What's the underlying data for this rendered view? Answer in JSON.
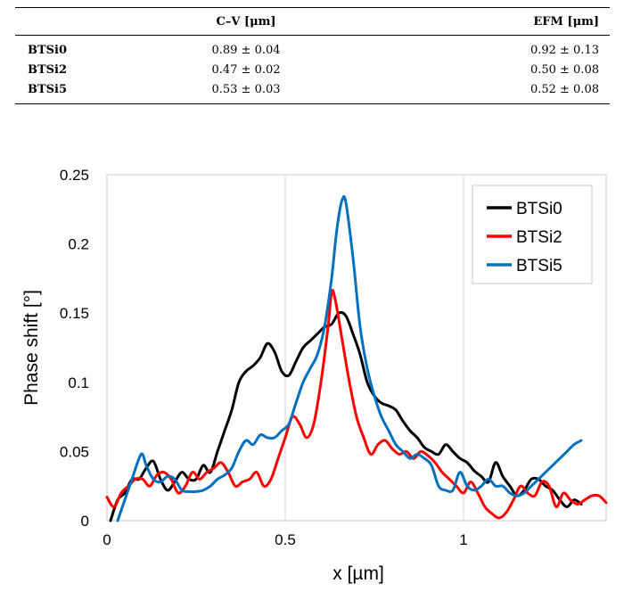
{
  "table": {
    "headers": [
      "",
      "C–V [μm]",
      "EFM [μm]"
    ],
    "rows": [
      [
        "BTSi0",
        "0.89 ± 0.04",
        "0.92 ± 0.13"
      ],
      [
        "BTSi2",
        "0.47 ± 0.02",
        "0.50 ± 0.08"
      ],
      [
        "BTSi5",
        "0.53 ± 0.03",
        "0.52 ± 0.08"
      ]
    ]
  },
  "chart_data": {
    "type": "line",
    "title": "",
    "xlabel": "x [µm]",
    "ylabel": "Phase shift [°]",
    "xlim": [
      0,
      1.4
    ],
    "ylim": [
      0,
      0.25
    ],
    "xticks": [
      0,
      0.5,
      1
    ],
    "xtick_labels": [
      "0",
      "0.5",
      "1"
    ],
    "yticks": [
      0,
      0.05,
      0.1,
      0.15,
      0.2,
      0.25
    ],
    "ytick_labels": [
      "0",
      "0.05",
      "0.1",
      "0.15",
      "0.2",
      "0.25"
    ],
    "grid": "vertical",
    "legend_position": "top-right",
    "series": [
      {
        "name": "BTSi0",
        "color": "#000000",
        "x": [
          0.01,
          0.03,
          0.05,
          0.07,
          0.09,
          0.11,
          0.13,
          0.15,
          0.17,
          0.19,
          0.21,
          0.23,
          0.25,
          0.27,
          0.29,
          0.31,
          0.33,
          0.35,
          0.37,
          0.39,
          0.41,
          0.43,
          0.45,
          0.47,
          0.49,
          0.51,
          0.53,
          0.55,
          0.57,
          0.59,
          0.61,
          0.63,
          0.65,
          0.67,
          0.69,
          0.71,
          0.73,
          0.75,
          0.77,
          0.79,
          0.81,
          0.83,
          0.85,
          0.87,
          0.89,
          0.91,
          0.93,
          0.95,
          0.97,
          0.99,
          1.01,
          1.03,
          1.05,
          1.07,
          1.09,
          1.11,
          1.13,
          1.15,
          1.17,
          1.19,
          1.21,
          1.23,
          1.25,
          1.27,
          1.29,
          1.31,
          1.33
        ],
        "y": [
          0.0,
          0.015,
          0.02,
          0.03,
          0.03,
          0.038,
          0.043,
          0.03,
          0.022,
          0.028,
          0.035,
          0.03,
          0.03,
          0.04,
          0.035,
          0.05,
          0.065,
          0.08,
          0.1,
          0.108,
          0.112,
          0.118,
          0.128,
          0.122,
          0.108,
          0.105,
          0.115,
          0.125,
          0.13,
          0.135,
          0.14,
          0.142,
          0.15,
          0.148,
          0.135,
          0.12,
          0.1,
          0.09,
          0.085,
          0.083,
          0.08,
          0.072,
          0.065,
          0.06,
          0.053,
          0.05,
          0.048,
          0.055,
          0.05,
          0.045,
          0.042,
          0.036,
          0.032,
          0.028,
          0.042,
          0.032,
          0.025,
          0.018,
          0.022,
          0.03,
          0.03,
          0.025,
          0.022,
          0.015,
          0.01,
          0.015,
          0.012
        ]
      },
      {
        "name": "BTSi2",
        "color": "#ff0000",
        "x": [
          0.0,
          0.02,
          0.04,
          0.06,
          0.08,
          0.1,
          0.12,
          0.14,
          0.16,
          0.18,
          0.2,
          0.22,
          0.24,
          0.26,
          0.28,
          0.3,
          0.32,
          0.34,
          0.36,
          0.38,
          0.4,
          0.42,
          0.44,
          0.46,
          0.48,
          0.5,
          0.52,
          0.54,
          0.56,
          0.58,
          0.6,
          0.62,
          0.63,
          0.64,
          0.66,
          0.68,
          0.7,
          0.72,
          0.74,
          0.76,
          0.78,
          0.8,
          0.82,
          0.84,
          0.86,
          0.88,
          0.9,
          0.92,
          0.94,
          0.96,
          0.98,
          1.0,
          1.02,
          1.04,
          1.06,
          1.08,
          1.1,
          1.12,
          1.14,
          1.16,
          1.18,
          1.2,
          1.22,
          1.24,
          1.26,
          1.28,
          1.3,
          1.32,
          1.34,
          1.36,
          1.38,
          1.4
        ],
        "y": [
          0.017,
          0.01,
          0.02,
          0.025,
          0.03,
          0.03,
          0.025,
          0.033,
          0.035,
          0.03,
          0.02,
          0.025,
          0.035,
          0.03,
          0.035,
          0.038,
          0.042,
          0.035,
          0.025,
          0.028,
          0.03,
          0.035,
          0.025,
          0.03,
          0.045,
          0.06,
          0.075,
          0.07,
          0.06,
          0.07,
          0.1,
          0.14,
          0.165,
          0.16,
          0.13,
          0.1,
          0.075,
          0.06,
          0.048,
          0.055,
          0.058,
          0.052,
          0.048,
          0.05,
          0.045,
          0.05,
          0.047,
          0.042,
          0.035,
          0.03,
          0.025,
          0.02,
          0.028,
          0.02,
          0.01,
          0.005,
          0.002,
          0.006,
          0.015,
          0.025,
          0.02,
          0.018,
          0.028,
          0.025,
          0.01,
          0.02,
          0.015,
          0.012,
          0.015,
          0.018,
          0.018,
          0.013
        ]
      },
      {
        "name": "BTSi5",
        "color": "#0070c0",
        "x": [
          0.03,
          0.05,
          0.07,
          0.09,
          0.1,
          0.11,
          0.13,
          0.15,
          0.17,
          0.19,
          0.21,
          0.23,
          0.25,
          0.27,
          0.29,
          0.31,
          0.33,
          0.35,
          0.37,
          0.39,
          0.41,
          0.43,
          0.45,
          0.47,
          0.49,
          0.51,
          0.53,
          0.55,
          0.57,
          0.59,
          0.61,
          0.63,
          0.64,
          0.65,
          0.66,
          0.67,
          0.69,
          0.71,
          0.73,
          0.75,
          0.77,
          0.79,
          0.81,
          0.83,
          0.85,
          0.87,
          0.89,
          0.91,
          0.93,
          0.95,
          0.97,
          0.99,
          1.01,
          1.03,
          1.05,
          1.07,
          1.09,
          1.11,
          1.13,
          1.15,
          1.17,
          1.19,
          1.21,
          1.23,
          1.25,
          1.27,
          1.29,
          1.31,
          1.33
        ],
        "y": [
          0.0,
          0.015,
          0.03,
          0.045,
          0.048,
          0.04,
          0.03,
          0.028,
          0.032,
          0.03,
          0.022,
          0.021,
          0.021,
          0.022,
          0.025,
          0.03,
          0.033,
          0.038,
          0.05,
          0.058,
          0.055,
          0.062,
          0.06,
          0.06,
          0.065,
          0.07,
          0.085,
          0.1,
          0.11,
          0.12,
          0.14,
          0.175,
          0.2,
          0.22,
          0.232,
          0.23,
          0.19,
          0.14,
          0.11,
          0.09,
          0.075,
          0.065,
          0.055,
          0.05,
          0.045,
          0.048,
          0.045,
          0.04,
          0.025,
          0.022,
          0.022,
          0.035,
          0.025,
          0.022,
          0.025,
          0.03,
          0.025,
          0.025,
          0.02,
          0.018,
          0.02,
          0.025,
          0.03,
          0.035,
          0.04,
          0.045,
          0.05,
          0.055,
          0.058
        ]
      }
    ]
  }
}
